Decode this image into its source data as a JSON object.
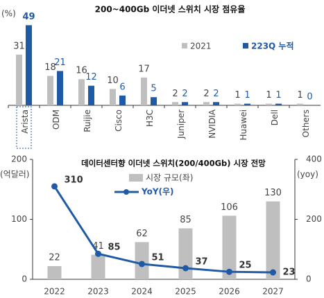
{
  "chart_data": [
    {
      "type": "bar",
      "title": "200~400Gb 이더넷 스위치 시장 점유율",
      "y_label": "(%)",
      "categories": [
        "Arista",
        "ODM",
        "Ruijie",
        "Cisco",
        "H3C",
        "Juniper",
        "NVIDIA",
        "Huawei",
        "Dell",
        "Others"
      ],
      "series": [
        {
          "name": "2021",
          "color": "#bfbfbf",
          "values": [
            31,
            18,
            16,
            10,
            17,
            2,
            2,
            1,
            1,
            1
          ]
        },
        {
          "name": "223Q 누적",
          "color": "#1f5aa6",
          "values": [
            49,
            21,
            12,
            6,
            5,
            2,
            2,
            1,
            1,
            0
          ]
        }
      ],
      "ylim": [
        0,
        50
      ]
    },
    {
      "type": "bar-line",
      "title": "데이터센터향 이더넷 스위치(200/400Gb) 시장 전망",
      "y_label": "(억달러)",
      "y2_label": "(yoy)",
      "categories": [
        "2022",
        "2023",
        "2024",
        "2025",
        "2026",
        "2027"
      ],
      "series": [
        {
          "name": "시장 규모(좌)",
          "color": "#bfbfbf",
          "values": [
            22,
            41,
            62,
            85,
            106,
            130
          ]
        },
        {
          "name": "YoY(우)",
          "color": "#1f5aa6",
          "axis": "y2",
          "values": [
            310,
            85,
            51,
            37,
            25,
            23
          ]
        }
      ],
      "ylim": [
        0,
        200
      ],
      "yticks": [
        0,
        100,
        200
      ],
      "y2lim": [
        0,
        400
      ],
      "y2ticks": [
        0,
        200,
        400
      ]
    }
  ]
}
